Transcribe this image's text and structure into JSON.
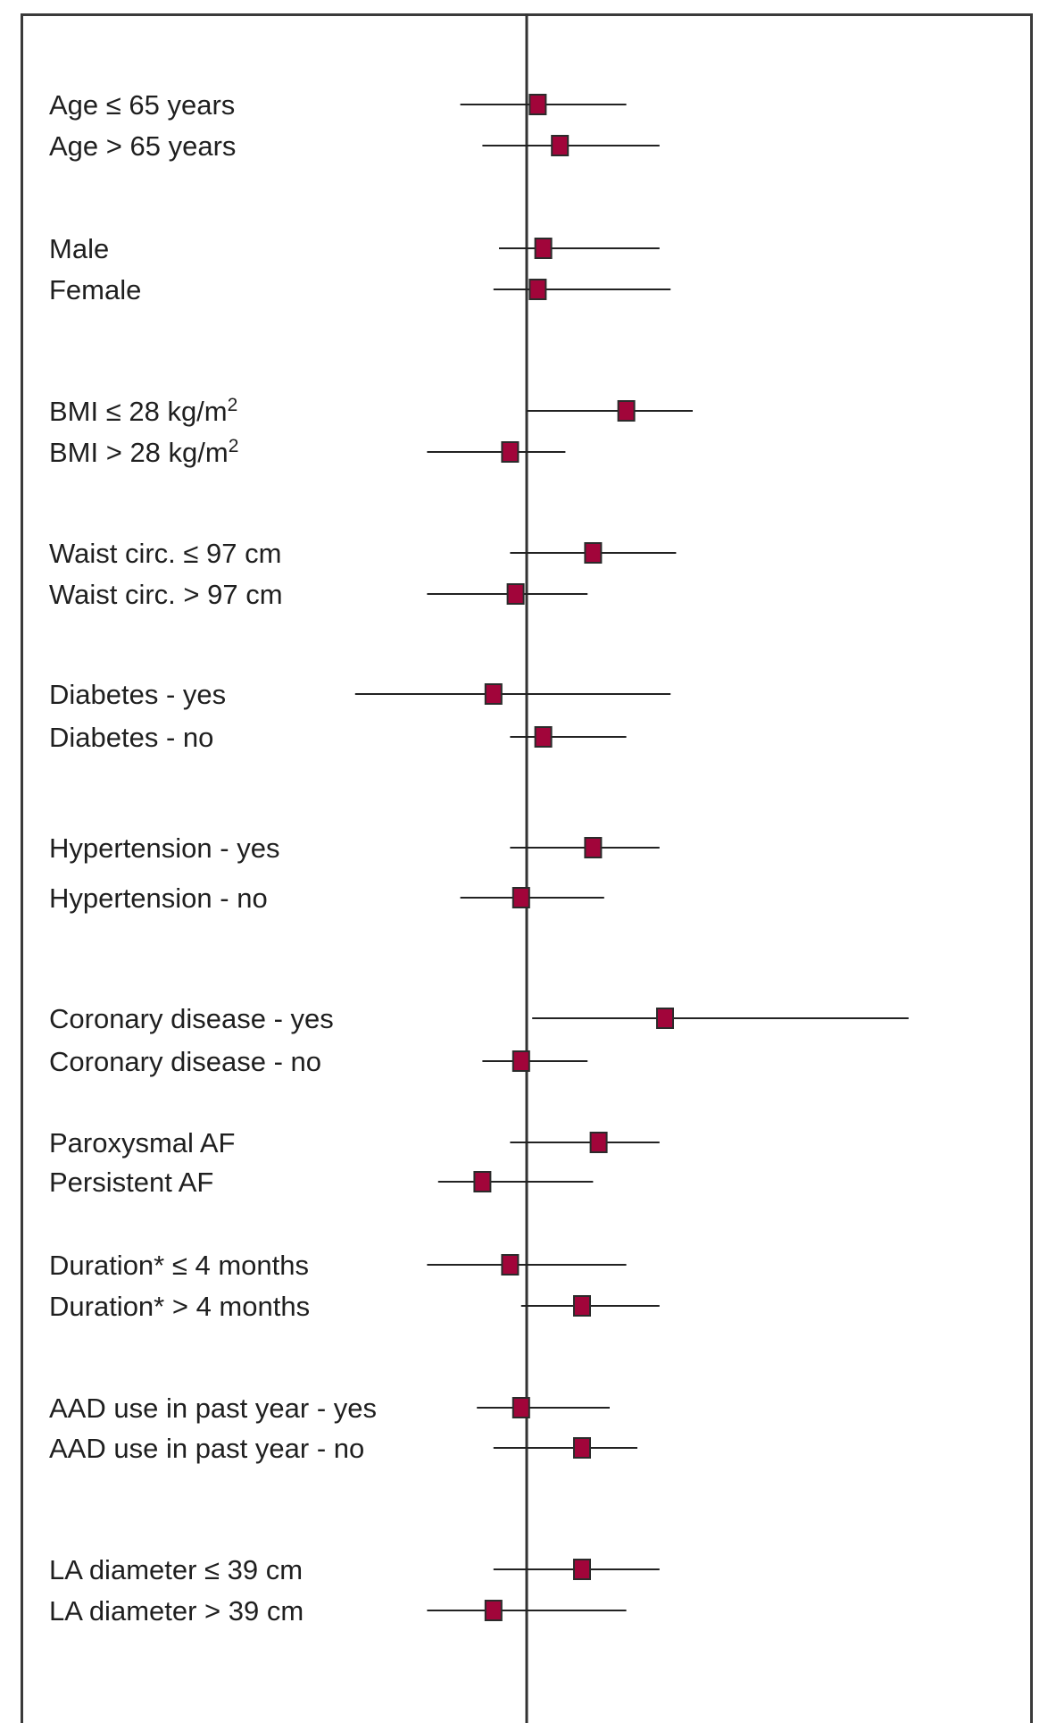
{
  "chart_data": {
    "type": "forest",
    "title": "",
    "xlabel": "",
    "ylabel": "",
    "reference_line": 1.0,
    "xlim": [
      0.55,
      2.05
    ],
    "grid": false,
    "legend": "none",
    "marker_color": "#a1053a",
    "marker_edge_color": "#2b2b2b",
    "line_color": "#222222",
    "rows": [
      {
        "label": "Age ≤ 65 years",
        "sup": "",
        "est": 1.02,
        "lo": 0.88,
        "hi": 1.18
      },
      {
        "label": "Age > 65 years",
        "sup": "",
        "est": 1.06,
        "lo": 0.92,
        "hi": 1.24
      },
      {
        "label": "Male",
        "sup": "",
        "est": 1.03,
        "lo": 0.95,
        "hi": 1.24
      },
      {
        "label": "Female",
        "sup": "",
        "est": 1.02,
        "lo": 0.94,
        "hi": 1.26
      },
      {
        "label": "BMI ≤ 28 kg/m",
        "sup": "2",
        "est": 1.18,
        "lo": 1.0,
        "hi": 1.3
      },
      {
        "label": "BMI > 28 kg/m",
        "sup": "2",
        "est": 0.97,
        "lo": 0.82,
        "hi": 1.07
      },
      {
        "label": "Waist circ. ≤ 97 cm",
        "sup": "",
        "est": 1.12,
        "lo": 0.97,
        "hi": 1.27
      },
      {
        "label": "Waist circ. > 97 cm",
        "sup": "",
        "est": 0.98,
        "lo": 0.82,
        "hi": 1.11
      },
      {
        "label": "Diabetes - yes",
        "sup": "",
        "est": 0.94,
        "lo": 0.69,
        "hi": 1.26
      },
      {
        "label": "Diabetes - no",
        "sup": "",
        "est": 1.03,
        "lo": 0.97,
        "hi": 1.18
      },
      {
        "label": "Hypertension - yes",
        "sup": "",
        "est": 1.12,
        "lo": 0.97,
        "hi": 1.24
      },
      {
        "label": "Hypertension - no",
        "sup": "",
        "est": 0.99,
        "lo": 0.88,
        "hi": 1.14
      },
      {
        "label": "Coronary disease - yes",
        "sup": "",
        "est": 1.25,
        "lo": 1.01,
        "hi": 1.69
      },
      {
        "label": "Coronary disease - no",
        "sup": "",
        "est": 0.99,
        "lo": 0.92,
        "hi": 1.11
      },
      {
        "label": "Paroxysmal AF",
        "sup": "",
        "est": 1.13,
        "lo": 0.97,
        "hi": 1.24
      },
      {
        "label": "Persistent AF",
        "sup": "",
        "est": 0.92,
        "lo": 0.84,
        "hi": 1.12
      },
      {
        "label": "Duration* ≤ 4 months",
        "sup": "",
        "est": 0.97,
        "lo": 0.82,
        "hi": 1.18
      },
      {
        "label": "Duration* > 4 months",
        "sup": "",
        "est": 1.1,
        "lo": 0.99,
        "hi": 1.24
      },
      {
        "label": "AAD use in past year - yes",
        "sup": "",
        "est": 0.99,
        "lo": 0.91,
        "hi": 1.15
      },
      {
        "label": "AAD use in past year - no",
        "sup": "",
        "est": 1.1,
        "lo": 0.94,
        "hi": 1.2
      },
      {
        "label": "LA diameter ≤ 39 cm",
        "sup": "",
        "est": 1.1,
        "lo": 0.94,
        "hi": 1.24
      },
      {
        "label": "LA diameter > 39 cm",
        "sup": "",
        "est": 0.94,
        "lo": 0.82,
        "hi": 1.18
      }
    ]
  }
}
